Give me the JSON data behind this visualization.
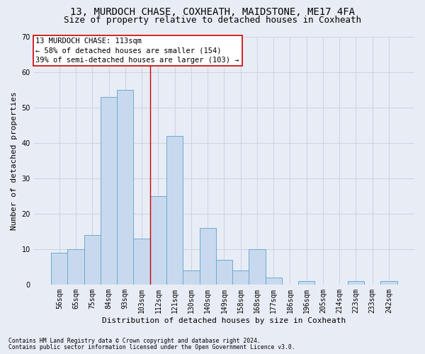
{
  "title1": "13, MURDOCH CHASE, COXHEATH, MAIDSTONE, ME17 4FA",
  "title2": "Size of property relative to detached houses in Coxheath",
  "xlabel": "Distribution of detached houses by size in Coxheath",
  "ylabel": "Number of detached properties",
  "bar_color": "#c8d9ee",
  "bar_edge_color": "#6aaad4",
  "categories": [
    "56sqm",
    "65sqm",
    "75sqm",
    "84sqm",
    "93sqm",
    "103sqm",
    "112sqm",
    "121sqm",
    "130sqm",
    "140sqm",
    "149sqm",
    "158sqm",
    "168sqm",
    "177sqm",
    "186sqm",
    "196sqm",
    "205sqm",
    "214sqm",
    "223sqm",
    "233sqm",
    "242sqm"
  ],
  "values": [
    9,
    10,
    14,
    53,
    55,
    13,
    25,
    42,
    4,
    16,
    7,
    4,
    10,
    2,
    0,
    1,
    0,
    0,
    1,
    0,
    1
  ],
  "vline_idx": 6,
  "vline_color": "#cc0000",
  "annotation_line1": "13 MURDOCH CHASE: 113sqm",
  "annotation_line2": "← 58% of detached houses are smaller (154)",
  "annotation_line3": "39% of semi-detached houses are larger (103) →",
  "annotation_box_color": "#ffffff",
  "annotation_box_edge": "#cc0000",
  "ylim": [
    0,
    70
  ],
  "yticks": [
    0,
    10,
    20,
    30,
    40,
    50,
    60,
    70
  ],
  "grid_color": "#cdd5e3",
  "background_color": "#e8edf5",
  "footnote1": "Contains HM Land Registry data © Crown copyright and database right 2024.",
  "footnote2": "Contains public sector information licensed under the Open Government Licence v3.0.",
  "title_fontsize": 10,
  "subtitle_fontsize": 9,
  "label_fontsize": 8,
  "tick_fontsize": 7,
  "annot_fontsize": 7.5,
  "footnote_fontsize": 5.8
}
